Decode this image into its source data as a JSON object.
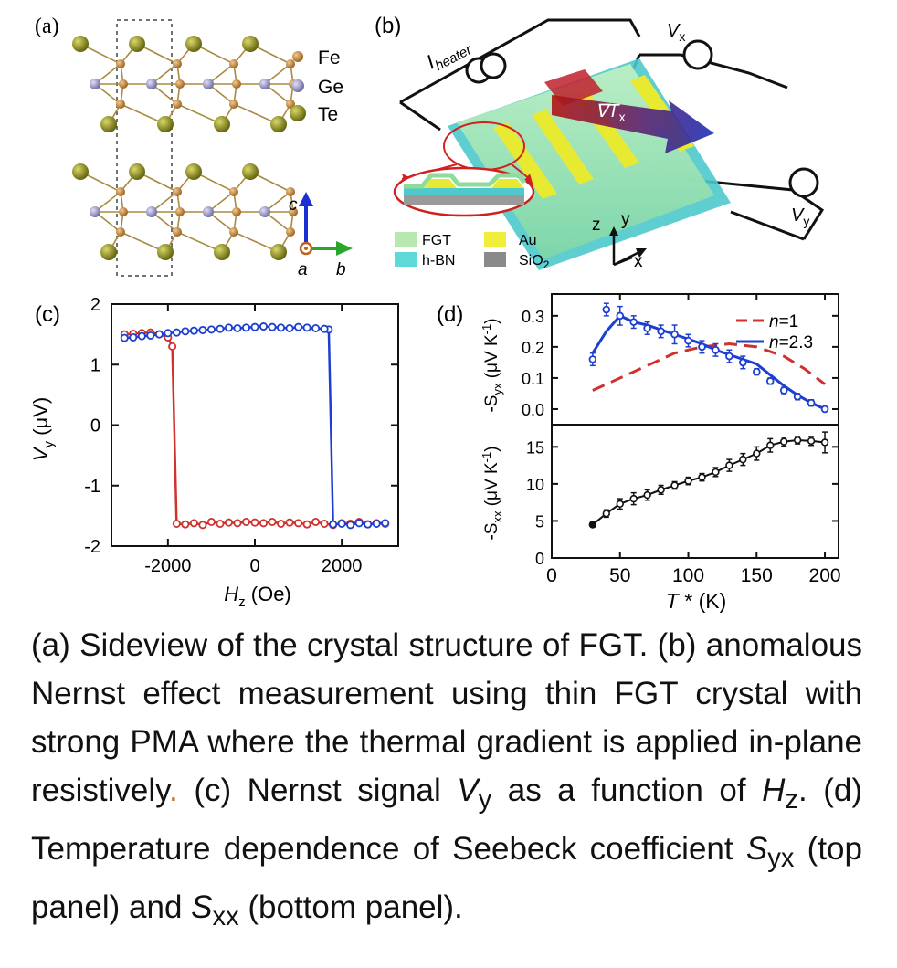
{
  "panels": {
    "a": {
      "label": "(a)",
      "legend": [
        {
          "name": "Fe",
          "color": "#c98a3a"
        },
        {
          "name": "Ge",
          "color": "#8c88b8"
        },
        {
          "name": "Te",
          "color": "#7a7a12"
        }
      ],
      "axes": {
        "c": "c",
        "a": "a",
        "b": "b"
      }
    },
    "b": {
      "label": "(b)",
      "heater": "I",
      "heater_sub": "heater",
      "vx": "V",
      "vx_sub": "x",
      "vy": "V",
      "vy_sub": "y",
      "grad": "∇T",
      "grad_sub": "x",
      "legend": [
        {
          "name": "FGT",
          "color": "#b6e8b0"
        },
        {
          "name": "Au",
          "color": "#f0ee3a"
        },
        {
          "name": "h-BN",
          "color": "#5fd8d8"
        },
        {
          "name": "SiO",
          "sub": "2",
          "color": "#8a8a8a"
        }
      ],
      "axes": {
        "z": "z",
        "y": "y",
        "x": "x"
      }
    }
  },
  "chart_data": [
    {
      "id": "c",
      "label": "(c)",
      "type": "line",
      "xlabel": "H",
      "xlabel_sub": "z",
      "xlabel_unit": "(Oe)",
      "ylabel": "V",
      "ylabel_sub": "y",
      "ylabel_unit": "(μV)",
      "xlim": [
        -3300,
        3300
      ],
      "ylim": [
        -2,
        2
      ],
      "xticks": [
        -2000,
        0,
        2000
      ],
      "yticks": [
        -2,
        -1,
        0,
        1,
        2
      ],
      "series": [
        {
          "color": "#d0312d",
          "x": [
            -3000,
            -2800,
            -2600,
            -2400,
            -2200,
            -2000,
            -1900,
            -1800,
            -1600,
            -1400,
            -1200,
            -1000,
            -800,
            -600,
            -400,
            -200,
            0,
            200,
            400,
            600,
            800,
            1000,
            1200,
            1400,
            1600,
            1800,
            2000,
            2200,
            2400,
            2600,
            2800,
            3000
          ],
          "y": [
            1.5,
            1.51,
            1.52,
            1.53,
            1.5,
            1.45,
            1.3,
            -1.63,
            -1.64,
            -1.62,
            -1.65,
            -1.6,
            -1.63,
            -1.61,
            -1.62,
            -1.6,
            -1.61,
            -1.62,
            -1.6,
            -1.63,
            -1.61,
            -1.62,
            -1.64,
            -1.6,
            -1.63,
            -1.65,
            -1.62,
            -1.63,
            -1.6,
            -1.64,
            -1.62,
            -1.63
          ]
        },
        {
          "color": "#1c3fd0",
          "x": [
            3000,
            2800,
            2600,
            2400,
            2200,
            2000,
            1800,
            1700,
            1600,
            1400,
            1200,
            1000,
            800,
            600,
            400,
            200,
            0,
            -200,
            -400,
            -600,
            -800,
            -1000,
            -1200,
            -1400,
            -1600,
            -1800,
            -2000,
            -2200,
            -2400,
            -2600,
            -2800,
            -3000
          ],
          "y": [
            -1.62,
            -1.63,
            -1.64,
            -1.62,
            -1.65,
            -1.63,
            -1.64,
            1.58,
            1.59,
            1.6,
            1.61,
            1.62,
            1.6,
            1.61,
            1.62,
            1.63,
            1.62,
            1.61,
            1.6,
            1.61,
            1.59,
            1.58,
            1.57,
            1.56,
            1.55,
            1.53,
            1.52,
            1.5,
            1.48,
            1.47,
            1.45,
            1.44
          ]
        }
      ]
    },
    {
      "id": "d-top",
      "label": "(d)",
      "type": "line",
      "ylabel": "-S",
      "ylabel_sub": "yx",
      "ylabel_unit": "(μV K",
      "ylabel_sup": "-1",
      "ylabel_close": ")",
      "xlim": [
        0,
        210
      ],
      "ylim": [
        -0.05,
        0.37
      ],
      "yticks": [
        0.0,
        0.1,
        0.2,
        0.3
      ],
      "ytick_labels": [
        "0.0",
        "0.1",
        "0.2",
        "0.3"
      ],
      "legend": [
        {
          "prefix": "n",
          "text": "=1",
          "color": "#d0312d",
          "dashed": true
        },
        {
          "prefix": "n",
          "text": "=2.3",
          "color": "#1c3fd0",
          "dashed": false
        }
      ],
      "points": {
        "x": [
          30,
          40,
          50,
          60,
          70,
          80,
          90,
          100,
          110,
          120,
          130,
          140,
          150,
          160,
          170,
          180,
          190,
          200
        ],
        "y": [
          0.16,
          0.32,
          0.3,
          0.28,
          0.26,
          0.25,
          0.24,
          0.22,
          0.2,
          0.19,
          0.17,
          0.15,
          0.12,
          0.09,
          0.06,
          0.04,
          0.02,
          0.0
        ],
        "err": [
          0.02,
          0.02,
          0.03,
          0.02,
          0.02,
          0.02,
          0.03,
          0.02,
          0.02,
          0.02,
          0.02,
          0.02,
          0.01,
          0.01,
          0.01,
          0.01,
          0.01,
          0.0
        ]
      },
      "series": [
        {
          "name": "n=1",
          "color": "#d0312d",
          "dashed": true,
          "x": [
            30,
            50,
            70,
            90,
            110,
            130,
            150,
            170,
            185,
            200
          ],
          "y": [
            0.06,
            0.1,
            0.14,
            0.18,
            0.2,
            0.21,
            0.2,
            0.17,
            0.13,
            0.08
          ]
        },
        {
          "name": "n=2.3",
          "color": "#1c3fd0",
          "dashed": false,
          "x": [
            30,
            40,
            50,
            60,
            70,
            80,
            90,
            100,
            110,
            120,
            130,
            140,
            150,
            160,
            170,
            180,
            190,
            200
          ],
          "y": [
            0.18,
            0.25,
            0.3,
            0.28,
            0.27,
            0.255,
            0.24,
            0.225,
            0.21,
            0.19,
            0.175,
            0.16,
            0.145,
            0.11,
            0.075,
            0.045,
            0.02,
            0.0
          ]
        }
      ]
    },
    {
      "id": "d-bottom",
      "type": "line",
      "xlabel": "T",
      "xlabel_sup": "*",
      "xlabel_unit": "(K)",
      "ylabel": "-S",
      "ylabel_sub": "xx",
      "ylabel_unit": "(μV K",
      "ylabel_sup": "-1",
      "ylabel_close": ")",
      "xlim": [
        0,
        210
      ],
      "ylim": [
        0,
        18
      ],
      "xticks": [
        0,
        50,
        100,
        150,
        200
      ],
      "yticks": [
        0,
        5,
        10,
        15
      ],
      "series": [
        {
          "color": "#111111",
          "x": [
            30,
            40,
            50,
            60,
            70,
            80,
            90,
            100,
            110,
            120,
            130,
            140,
            150,
            160,
            170,
            180,
            190,
            200
          ],
          "y": [
            4.5,
            6.0,
            7.3,
            8.0,
            8.5,
            9.2,
            9.8,
            10.4,
            10.9,
            11.6,
            12.5,
            13.3,
            14.1,
            15.2,
            15.7,
            15.9,
            15.8,
            15.6
          ],
          "err": [
            0.3,
            0.5,
            0.7,
            0.8,
            0.7,
            0.6,
            0.5,
            0.5,
            0.5,
            0.6,
            0.8,
            0.8,
            0.9,
            0.9,
            0.6,
            0.5,
            0.6,
            1.4
          ]
        }
      ]
    }
  ],
  "caption": {
    "p1": "(a) Sideview of the crystal structure of FGT. (b) anomalous Nernst effect measurement using thin FGT crystal with strong PMA where the thermal gradient is applied in-plane resistively",
    "dot": ".",
    "p2": " (c) Nernst signal ",
    "v": "V",
    "v_sub": "y",
    "p3": " as a function of ",
    "h": "H",
    "h_sub": "z",
    "p4": ". (d) Temperature dependence of Seebeck coefficient ",
    "s1": "S",
    "s1_sub": "yx",
    "p5": " (top panel) and ",
    "s2": "S",
    "s2_sub": "xx",
    "p6": " (bottom panel)."
  }
}
